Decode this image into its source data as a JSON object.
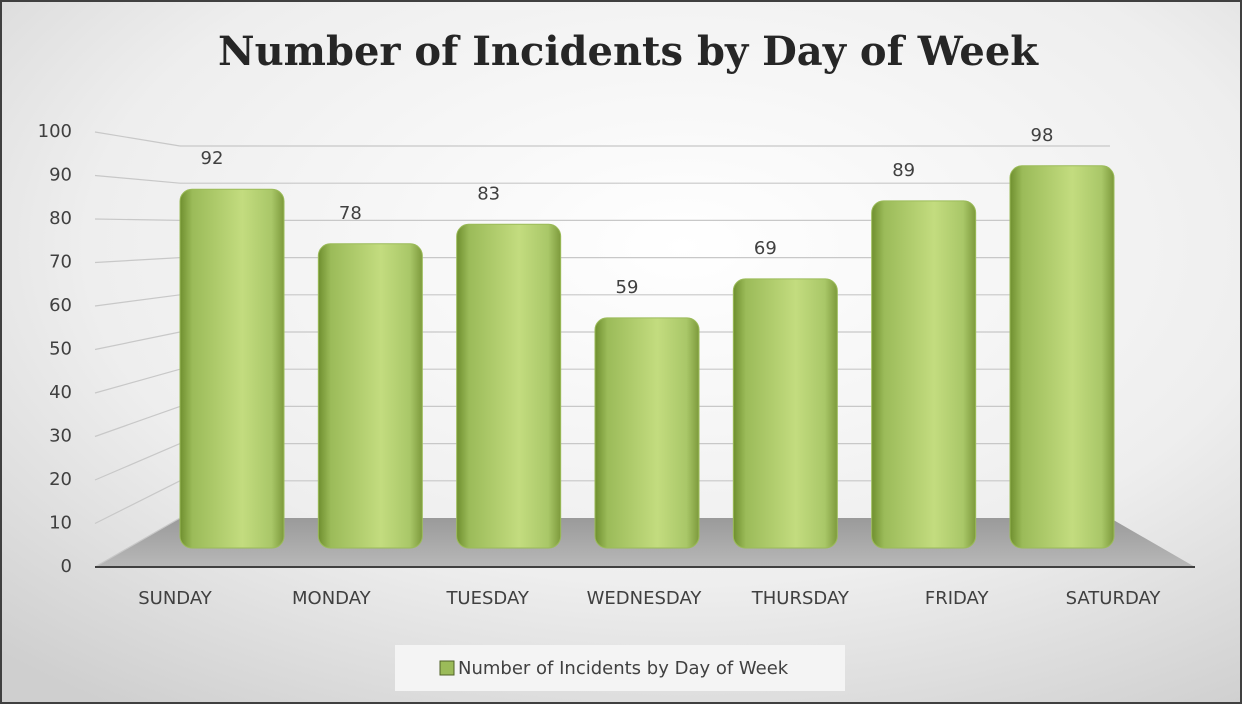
{
  "chart_data": {
    "type": "bar",
    "title": "Number of Incidents by Day of Week",
    "categories": [
      "SUNDAY",
      "MONDAY",
      "TUESDAY",
      "WEDNESDAY",
      "THURSDAY",
      "FRIDAY",
      "SATURDAY"
    ],
    "series": [
      {
        "name": "Number of Incidents by Day of Week",
        "color": "#9bbb59",
        "values": [
          92,
          78,
          83,
          59,
          69,
          89,
          98
        ]
      }
    ],
    "ylim": [
      0,
      100
    ],
    "yticks": [
      0,
      10,
      20,
      30,
      40,
      50,
      60,
      70,
      80,
      90,
      100
    ],
    "grid": true,
    "legend": "bottom"
  }
}
